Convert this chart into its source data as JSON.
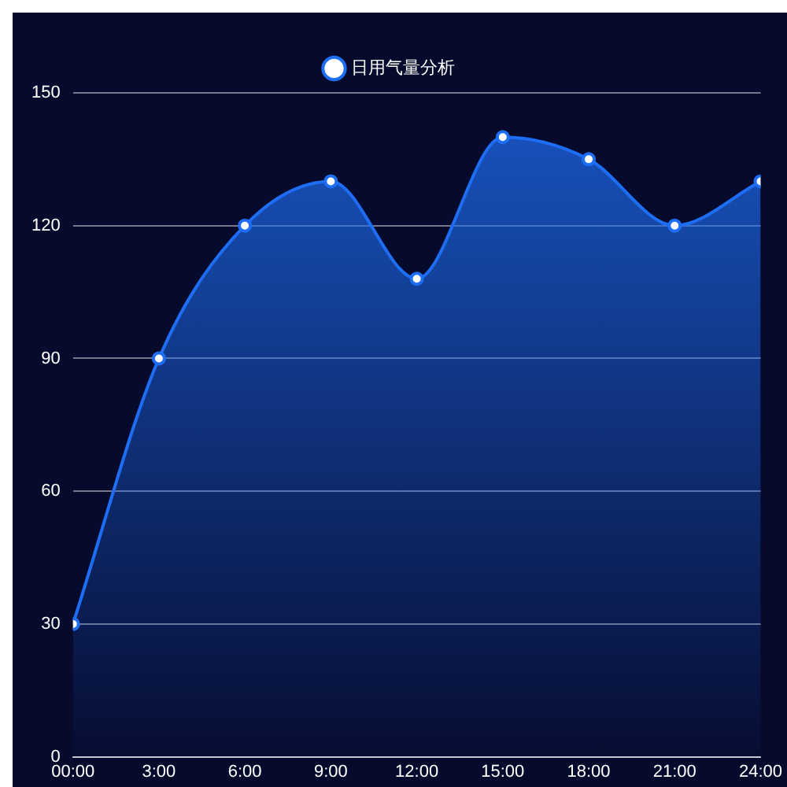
{
  "chart_data": {
    "type": "area",
    "x": [
      0,
      3,
      6,
      9,
      12,
      15,
      18,
      21,
      24
    ],
    "series": [
      {
        "name": "日用气量分析",
        "color": "#1e6ef5",
        "values": [
          30,
          90,
          120,
          130,
          108,
          140,
          135,
          120,
          130
        ]
      }
    ],
    "xlim": [
      0,
      24
    ],
    "xticks": [
      {
        "value": 0,
        "label": "00:00"
      },
      {
        "value": 3,
        "label": "3:00"
      },
      {
        "value": 6,
        "label": "6:00"
      },
      {
        "value": 9,
        "label": "9:00"
      },
      {
        "value": 12,
        "label": "12:00"
      },
      {
        "value": 15,
        "label": "15:00"
      },
      {
        "value": 18,
        "label": "18:00"
      },
      {
        "value": 21,
        "label": "21:00"
      },
      {
        "value": 24,
        "label": "24:00"
      }
    ],
    "ylim": [
      0,
      150
    ],
    "yticks": [
      0,
      30,
      60,
      90,
      120,
      150
    ],
    "grid": "y",
    "legend": "top",
    "marker": "circle"
  }
}
